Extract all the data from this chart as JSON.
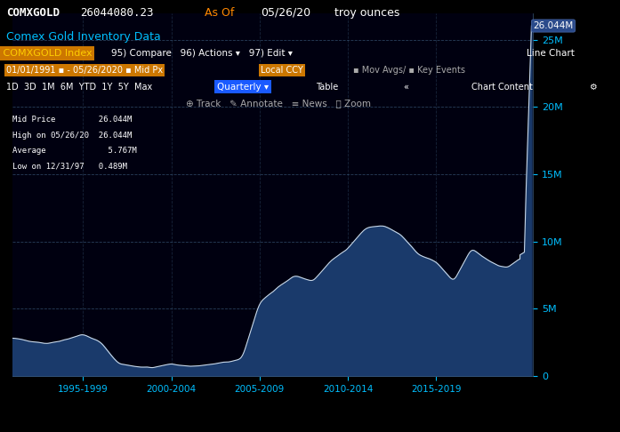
{
  "title_line1": "COMXGOLD     26044080.23",
  "title_line1_asof": "As Of  05/26/20    troy ounces",
  "title_line2": "Comex Gold Inventory Data",
  "bg_color": "#000000",
  "chart_bg_color": "#000010",
  "fill_color": "#1a3a6b",
  "line_color": "#c8d8e8",
  "grid_color": "#3a4a5a",
  "axis_label_color": "#00bfff",
  "ytick_labels": [
    "0",
    "5M",
    "10M",
    "15M",
    "20M",
    "25M"
  ],
  "ytick_values": [
    0,
    5000000,
    10000000,
    15000000,
    20000000,
    25000000
  ],
  "xtick_labels": [
    "1995-1999",
    "2000-2004",
    "2005-2009",
    "2010-2014",
    "2015-2019"
  ],
  "ylim": [
    0,
    27000000
  ],
  "annotation_label": "26.044M",
  "header_bar_color": "#8b0000",
  "toolbar_color": "#1a1a2e",
  "legend_text": [
    "Mid Price         26.044M",
    "High on 05/26/20  26.044M",
    "Average             5.767M",
    "Low on 12/31/97   0.489M"
  ],
  "years": [
    1991,
    1992,
    1993,
    1994,
    1995,
    1996,
    1997,
    1998,
    1999,
    2000,
    2001,
    2002,
    2003,
    2004,
    2005,
    2006,
    2007,
    2008,
    2009,
    2010,
    2011,
    2012,
    2013,
    2014,
    2015,
    2016,
    2017,
    2018,
    2019,
    2020
  ],
  "values": [
    2800000,
    2600000,
    2400000,
    2700000,
    3100000,
    2500000,
    900000,
    700000,
    600000,
    900000,
    700000,
    800000,
    1000000,
    1200000,
    5500000,
    6500000,
    7500000,
    7000000,
    8500000,
    9500000,
    11000000,
    11200000,
    10500000,
    9000000,
    8500000,
    7000000,
    9500000,
    8500000,
    8000000,
    9000000
  ],
  "spike_value": 26044080
}
